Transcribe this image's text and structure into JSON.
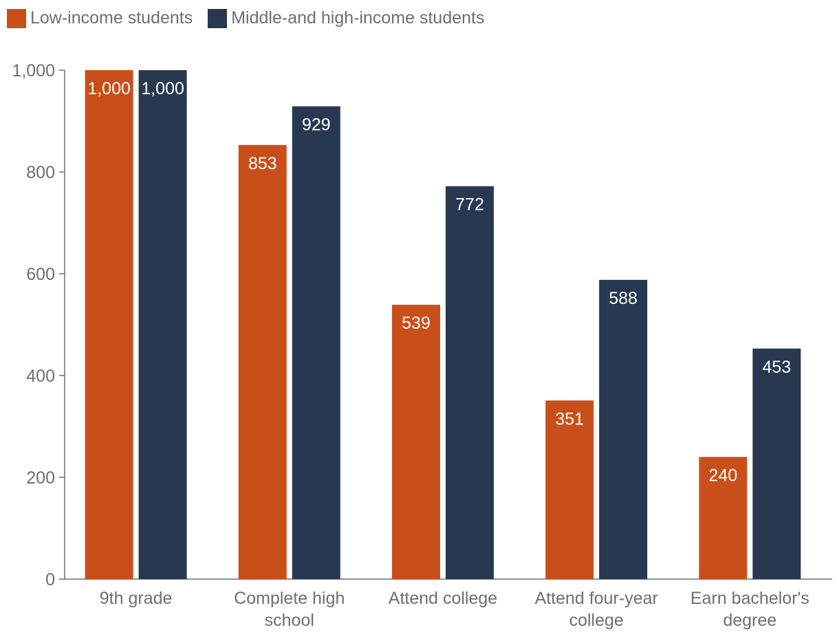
{
  "colors": {
    "low_income": "#c94f1a",
    "middle_high_income": "#283851",
    "axis": "#6d6e71",
    "text": "#6d6e71",
    "bar_label": "#ffffff"
  },
  "legend": {
    "items": [
      {
        "label": "Low-income students",
        "color": "#c94f1a"
      },
      {
        "label": "Middle-and high-income students",
        "color": "#283851"
      }
    ]
  },
  "chart_data": {
    "type": "bar",
    "title": "",
    "xlabel": "",
    "ylabel": "",
    "categories": [
      [
        "9th grade"
      ],
      [
        "Complete high",
        "school"
      ],
      [
        "Attend college"
      ],
      [
        "Attend four-year",
        "college"
      ],
      [
        "Earn bachelor's",
        "degree"
      ]
    ],
    "series": [
      {
        "name": "Low-income students",
        "color": "#c94f1a",
        "values": [
          1000,
          853,
          539,
          351,
          240
        ],
        "labels": [
          "1,000",
          "853",
          "539",
          "351",
          "240"
        ]
      },
      {
        "name": "Middle-and high-income students",
        "color": "#283851",
        "values": [
          1000,
          929,
          772,
          588,
          453
        ],
        "labels": [
          "1,000",
          "929",
          "772",
          "588",
          "453"
        ]
      }
    ],
    "ylim": [
      0,
      1000
    ],
    "yticks": [
      0,
      200,
      400,
      600,
      800,
      1000
    ],
    "ytick_labels": [
      "0",
      "200",
      "400",
      "600",
      "800",
      "1,000"
    ],
    "grid": false,
    "legend_position": "top-left"
  }
}
